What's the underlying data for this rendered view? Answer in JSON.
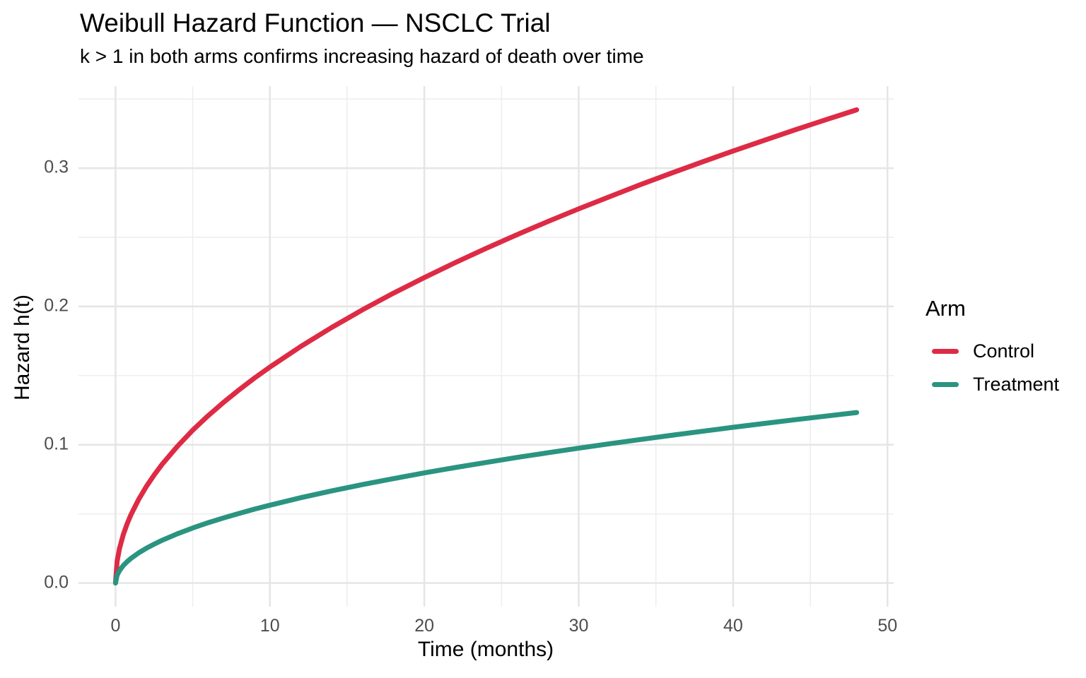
{
  "chart_data": {
    "type": "line",
    "title": "Weibull Hazard Function — NSCLC Trial",
    "subtitle": "k > 1 in both arms confirms increasing hazard of death over time",
    "xlabel": "Time (months)",
    "ylabel": "Hazard h(t)",
    "xlim": [
      0,
      48
    ],
    "ylim": [
      0,
      0.3422
    ],
    "x_ticks": [
      0,
      10,
      20,
      30,
      40,
      50
    ],
    "x_tick_labels": [
      "0",
      "10",
      "20",
      "30",
      "40",
      "50"
    ],
    "x_minor_ticks": [
      5,
      15,
      25,
      35,
      45
    ],
    "y_ticks": [
      0,
      0.1,
      0.2,
      0.3
    ],
    "y_tick_labels": [
      "0.0",
      "0.1",
      "0.2",
      "0.3"
    ],
    "y_minor_ticks": [
      0.05,
      0.15,
      0.25,
      0.35
    ],
    "grid": true,
    "legend_title": "Arm",
    "legend_position": "right",
    "x": [
      0,
      0.1,
      0.25,
      0.5,
      0.75,
      1,
      1.5,
      2,
      2.5,
      3,
      4,
      5,
      6,
      7,
      8,
      9,
      10,
      12,
      14,
      16,
      18,
      20,
      22,
      24,
      26,
      28,
      30,
      32,
      34,
      36,
      38,
      40,
      42,
      44,
      46,
      48
    ],
    "series": [
      {
        "name": "Control",
        "color": "#DE2B45",
        "values": [
          0,
          0.0156,
          0.0247,
          0.0349,
          0.0428,
          0.0494,
          0.0605,
          0.0699,
          0.0781,
          0.0856,
          0.0988,
          0.1105,
          0.121,
          0.1307,
          0.1397,
          0.1482,
          0.1562,
          0.1711,
          0.1848,
          0.1976,
          0.2096,
          0.2209,
          0.2317,
          0.242,
          0.2519,
          0.2614,
          0.2706,
          0.2794,
          0.2881,
          0.2964,
          0.3045,
          0.3124,
          0.3201,
          0.3277,
          0.335,
          0.3422
        ]
      },
      {
        "name": "Treatment",
        "color": "#2A9481",
        "values": [
          0,
          0.0056,
          0.0089,
          0.0126,
          0.0154,
          0.0178,
          0.0218,
          0.0252,
          0.0281,
          0.0308,
          0.0356,
          0.0398,
          0.0436,
          0.0471,
          0.0503,
          0.0534,
          0.0563,
          0.0617,
          0.0666,
          0.0712,
          0.0755,
          0.0796,
          0.0835,
          0.0872,
          0.0908,
          0.0942,
          0.0975,
          0.1007,
          0.1038,
          0.1068,
          0.1097,
          0.1126,
          0.1154,
          0.1181,
          0.1207,
          0.1233
        ]
      }
    ],
    "style": {
      "grid_major_color": "#E5E5E5",
      "grid_minor_color": "#EFEFEF",
      "tick_label_color": "#4D4D4D",
      "text_color": "#000000",
      "background": "#FFFFFF"
    }
  }
}
